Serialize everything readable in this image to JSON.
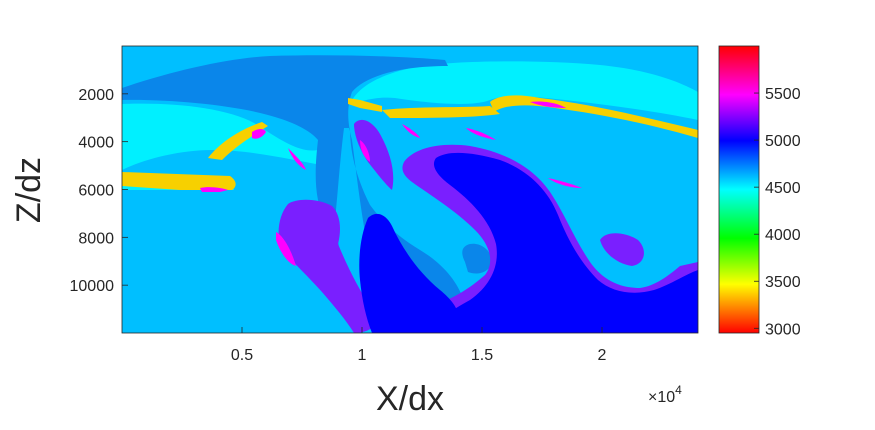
{
  "chart_data": {
    "type": "heatmap",
    "colormap": "hsv",
    "xlabel": "X/dx",
    "ylabel": "Z/dz",
    "x_exponent_label": "×10",
    "x_exponent_power": "4",
    "xlim": [
      0,
      2.4
    ],
    "ylim_reversed": [
      0,
      12000
    ],
    "x_ticks": [
      0.5,
      1,
      1.5,
      2
    ],
    "x_tick_labels": [
      "0.5",
      "1",
      "1.5",
      "2"
    ],
    "y_ticks": [
      2000,
      4000,
      6000,
      8000,
      10000
    ],
    "y_tick_labels": [
      "2000",
      "4000",
      "6000",
      "8000",
      "10000"
    ],
    "colorbar": {
      "clim": [
        2950,
        6000
      ],
      "ticks": [
        3000,
        3500,
        4000,
        4500,
        5000,
        5500
      ],
      "tick_labels": [
        "3000",
        "3500",
        "4000",
        "4500",
        "5000",
        "5500"
      ]
    },
    "regions": [
      {
        "name": "background",
        "value": 4600,
        "color": "#00BFFF"
      },
      {
        "name": "upper-cap",
        "value": 4700,
        "color": "#00F0FF"
      },
      {
        "name": "salt-body",
        "value": 4850,
        "color": "#0A86EA"
      },
      {
        "name": "deep-body",
        "value": 5000,
        "color": "#0000FF"
      },
      {
        "name": "folds",
        "value": 5250,
        "color": "#7A1FFF"
      },
      {
        "name": "thin-layers",
        "value": 3450,
        "color": "#F7D000"
      },
      {
        "name": "lenses",
        "value": 5600,
        "color": "#FF00FF"
      }
    ]
  }
}
